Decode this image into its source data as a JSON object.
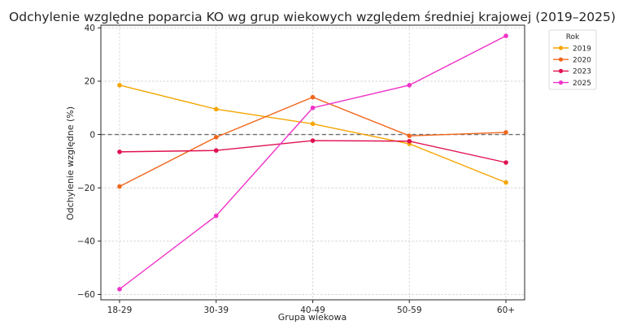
{
  "chart_data": {
    "type": "line",
    "title": "Odchylenie względne poparcia KO wg grup wiekowych względem średniej krajowej (2019–2025)",
    "xlabel": "Grupa wiekowa",
    "ylabel": "Odchylenie względne (%)",
    "categories": [
      "18-29",
      "30-39",
      "40-49",
      "50-59",
      "60+"
    ],
    "ylim": [
      -62,
      41
    ],
    "yticks": [
      40,
      20,
      0,
      -20,
      -40,
      -60
    ],
    "ytick_labels": [
      "40",
      "20",
      "0",
      "−20",
      "−40",
      "−60"
    ],
    "grid": true,
    "reference_line": 0,
    "legend": {
      "title": "Rok",
      "placement": "upper-right-outside"
    },
    "series": [
      {
        "name": "2019",
        "color": "#f5a500",
        "values": [
          18.5,
          9.5,
          4.0,
          -3.5,
          -18.0
        ]
      },
      {
        "name": "2020",
        "color": "#f2661a",
        "values": [
          -19.5,
          -1.0,
          14.0,
          -0.5,
          0.8
        ]
      },
      {
        "name": "2023",
        "color": "#e01050",
        "values": [
          -6.5,
          -6.0,
          -2.3,
          -2.5,
          -10.5
        ]
      },
      {
        "name": "2025",
        "color": "#f032c8",
        "values": [
          -58.0,
          -30.5,
          10.0,
          18.5,
          37.0
        ]
      }
    ]
  }
}
